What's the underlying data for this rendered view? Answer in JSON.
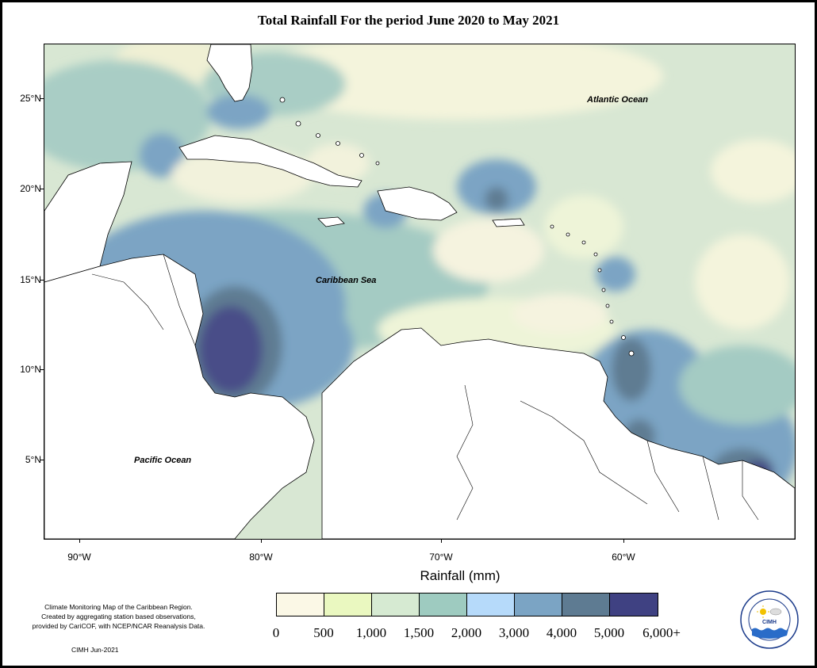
{
  "title": "Total Rainfall For the period June 2020 to May 2021",
  "map": {
    "lat_labels": [
      "25°N",
      "20°N",
      "15°N",
      "10°N",
      "5°N"
    ],
    "lon_labels": [
      "90°W",
      "80°W",
      "70°W",
      "60°W"
    ],
    "ocean_labels": {
      "atlantic": "Atlantic Ocean",
      "caribbean": "Caribbean Sea",
      "pacific": "Pacific Ocean"
    },
    "land_color": "#ffffff",
    "coastline_color": "#000000"
  },
  "legend": {
    "title": "Rainfall (mm)",
    "swatches": [
      {
        "color": "#fbf8e6"
      },
      {
        "color": "#eaf8c0"
      },
      {
        "color": "#d6ead2"
      },
      {
        "color": "#9ecbc0"
      },
      {
        "color": "#b6dafa"
      },
      {
        "color": "#7ba4c4"
      },
      {
        "color": "#5e7b92"
      },
      {
        "color": "#3f4182"
      }
    ],
    "labels": [
      "0",
      "500",
      "1,000",
      "1,500",
      "2,000",
      "3,000",
      "4,000",
      "5,000",
      "6,000+"
    ]
  },
  "notes": {
    "line1": "Climate Monitoring Map of the Caribbean Region.",
    "line2": "Created by aggregating station based observations,",
    "line3": "provided by CariCOF, with NCEP/NCAR Reanalysis Data.",
    "credit": "CIMH Jun-2021"
  },
  "logo": {
    "text": "CIMH",
    "ring_text": "Caribbean Institute for Meteorology and Hydrology"
  }
}
